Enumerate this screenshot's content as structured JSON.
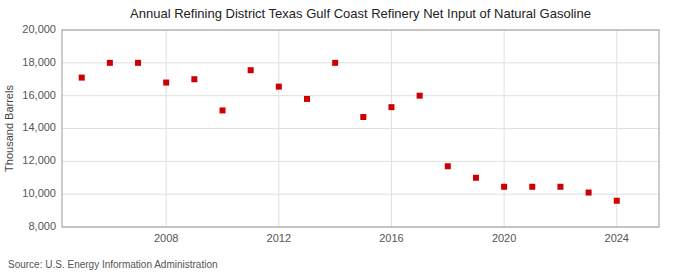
{
  "chart_data": {
    "type": "scatter",
    "title": "Annual Refining District Texas Gulf Coast Refinery Net Input of Natural Gasoline",
    "y_label": "Thousand Barrels",
    "annotations": [
      "Source: U.S. Energy Information Administration"
    ],
    "x": [
      2005,
      2006,
      2007,
      2008,
      2009,
      2010,
      2011,
      2012,
      2013,
      2014,
      2015,
      2016,
      2017,
      2018,
      2019,
      2020,
      2021,
      2022,
      2023,
      2024
    ],
    "values": [
      17100,
      18000,
      18000,
      16800,
      17000,
      15100,
      17550,
      16550,
      15800,
      18000,
      14700,
      15300,
      16000,
      11700,
      11000,
      10450,
      10450,
      10450,
      10100,
      9600
    ],
    "color": "#cc0000",
    "marker": "square",
    "xlim": [
      2004.3,
      2025.5
    ],
    "xticks": [
      2008,
      2012,
      2016,
      2020,
      2024
    ],
    "ylim": [
      8000,
      20000
    ],
    "yticks": [
      {
        "value": 8000,
        "label": "8,000"
      },
      {
        "value": 10000,
        "label": "10,000"
      },
      {
        "value": 12000,
        "label": "12,000"
      },
      {
        "value": 14000,
        "label": "14,000"
      },
      {
        "value": 16000,
        "label": "16,000"
      },
      {
        "value": 18000,
        "label": "18,000"
      },
      {
        "value": 20000,
        "label": "20,000"
      }
    ],
    "grid": true
  }
}
